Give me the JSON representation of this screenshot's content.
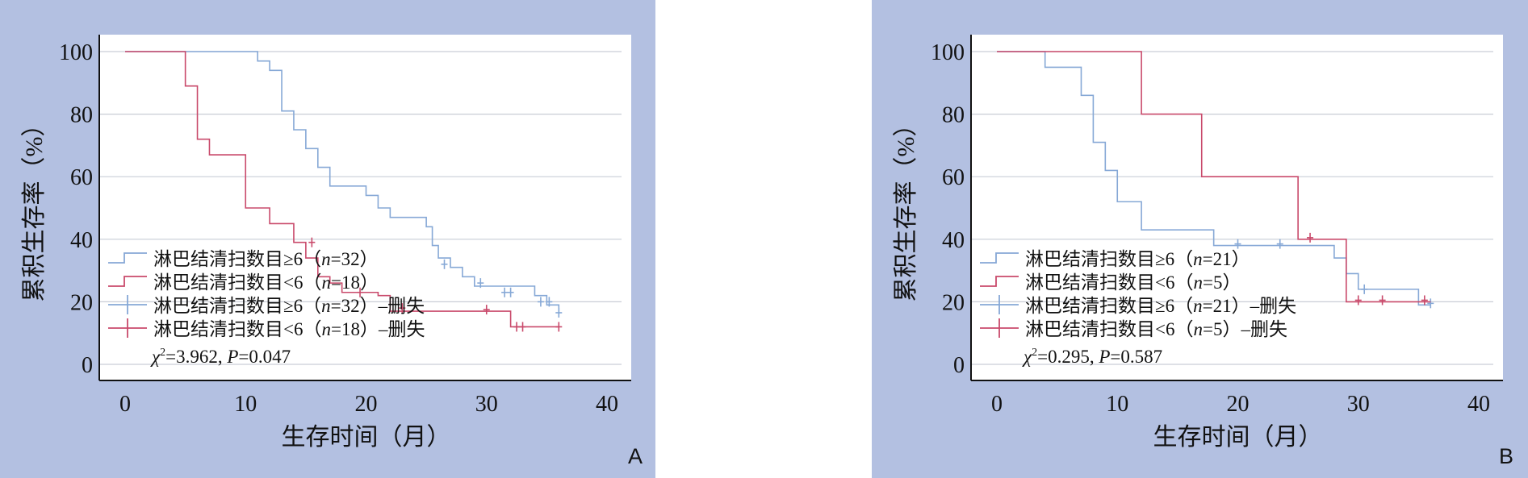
{
  "panels": [
    {
      "letter": "A",
      "stat_chi": "=3.962, ",
      "stat_p": "=0.047"
    },
    {
      "letter": "B",
      "stat_chi": "=0.295, ",
      "stat_p": "=0.587"
    }
  ],
  "chart_data": [
    {
      "type": "line",
      "subtype": "kaplan-meier step",
      "panel": "A",
      "xlabel": "生存时间（月）",
      "ylabel": "累积生存率（%）",
      "xlim": [
        0,
        40
      ],
      "ylim": [
        0,
        100
      ],
      "x_ticks": [
        0,
        10,
        20,
        30,
        40
      ],
      "y_ticks": [
        0,
        20,
        40,
        60,
        80,
        100
      ],
      "grid": "horizontal",
      "legend": [
        {
          "prefix": "淋巴结清扫数目≥6（",
          "n": "=32）",
          "suffix": ""
        },
        {
          "prefix": "淋巴结清扫数目<6（",
          "n": "=18）",
          "suffix": ""
        },
        {
          "prefix": "淋巴结清扫数目≥6（",
          "n": "=32）",
          "suffix": "–删失"
        },
        {
          "prefix": "淋巴结清扫数目<6（",
          "n": "=18）",
          "suffix": "–删失"
        }
      ],
      "legend_position": "bottom-left inside",
      "series": [
        {
          "name": "淋巴结清扫数目≥6（n=32）",
          "color": "#86a8d6",
          "steps": [
            [
              0,
              100
            ],
            [
              10,
              100
            ],
            [
              11,
              97
            ],
            [
              12,
              94
            ],
            [
              13,
              81
            ],
            [
              14,
              75
            ],
            [
              15,
              69
            ],
            [
              16,
              63
            ],
            [
              17,
              57
            ],
            [
              20,
              54
            ],
            [
              21,
              50
            ],
            [
              22,
              47
            ],
            [
              25,
              44
            ],
            [
              25.5,
              38
            ],
            [
              26,
              34
            ],
            [
              27,
              31
            ],
            [
              28,
              28
            ],
            [
              29,
              25
            ],
            [
              30,
              25
            ],
            [
              34,
              22
            ],
            [
              35,
              19
            ],
            [
              36,
              16
            ]
          ],
          "end": 36,
          "censored": [
            [
              26.5,
              32
            ],
            [
              29.5,
              26
            ],
            [
              31.5,
              23
            ],
            [
              32,
              23
            ],
            [
              34.5,
              20
            ],
            [
              35.2,
              20
            ],
            [
              36,
              16.5
            ]
          ]
        },
        {
          "name": "淋巴结清扫数目<6（n=18）",
          "color": "#c94a6b",
          "steps": [
            [
              0,
              100
            ],
            [
              5,
              89
            ],
            [
              6,
              72
            ],
            [
              7,
              67
            ],
            [
              10,
              50
            ],
            [
              12,
              45
            ],
            [
              14,
              39
            ],
            [
              15,
              34
            ],
            [
              16,
              28
            ],
            [
              17,
              26
            ],
            [
              18,
              23
            ],
            [
              21,
              22
            ],
            [
              22,
              17
            ],
            [
              32,
              12
            ]
          ],
          "end": 36,
          "censored": [
            [
              15.5,
              39
            ],
            [
              19.5,
              23
            ],
            [
              23,
              18
            ],
            [
              30,
              17.5
            ],
            [
              32.5,
              12
            ],
            [
              33,
              12
            ],
            [
              36,
              12
            ]
          ]
        }
      ]
    },
    {
      "type": "line",
      "subtype": "kaplan-meier step",
      "panel": "B",
      "xlabel": "生存时间（月）",
      "ylabel": "累积生存率（%）",
      "xlim": [
        0,
        40
      ],
      "ylim": [
        0,
        100
      ],
      "x_ticks": [
        0,
        10,
        20,
        30,
        40
      ],
      "y_ticks": [
        0,
        20,
        40,
        60,
        80,
        100
      ],
      "grid": "horizontal",
      "legend": [
        {
          "prefix": "淋巴结清扫数目≥6（",
          "n": "=21）",
          "suffix": ""
        },
        {
          "prefix": "淋巴结清扫数目<6（",
          "n": "=5）",
          "suffix": ""
        },
        {
          "prefix": "淋巴结清扫数目≥6（",
          "n": "=21）",
          "suffix": "–删失"
        },
        {
          "prefix": "淋巴结清扫数目<6（",
          "n": "=5）",
          "suffix": "–删失"
        }
      ],
      "legend_position": "bottom-left inside",
      "series": [
        {
          "name": "淋巴结清扫数目≥6（n=21）",
          "color": "#86a8d6",
          "steps": [
            [
              0,
              100
            ],
            [
              4,
              95
            ],
            [
              7,
              86
            ],
            [
              8,
              71
            ],
            [
              9,
              62
            ],
            [
              10,
              52
            ],
            [
              12,
              43
            ],
            [
              18,
              38
            ],
            [
              28,
              34
            ],
            [
              29,
              29
            ],
            [
              30,
              24
            ],
            [
              35,
              19
            ]
          ],
          "end": 36,
          "censored": [
            [
              20,
              38.5
            ],
            [
              23.5,
              38.5
            ],
            [
              30.5,
              24
            ],
            [
              36,
              19.5
            ]
          ]
        },
        {
          "name": "淋巴结清扫数目<6（n=5）",
          "color": "#c94a6b",
          "steps": [
            [
              0,
              100
            ],
            [
              12,
              80
            ],
            [
              17,
              60
            ],
            [
              25,
              40
            ],
            [
              29,
              20
            ]
          ],
          "end": 36,
          "censored": [
            [
              26,
              40.5
            ],
            [
              30,
              20.5
            ],
            [
              32,
              20.5
            ],
            [
              35.5,
              20.5
            ]
          ]
        }
      ]
    }
  ]
}
